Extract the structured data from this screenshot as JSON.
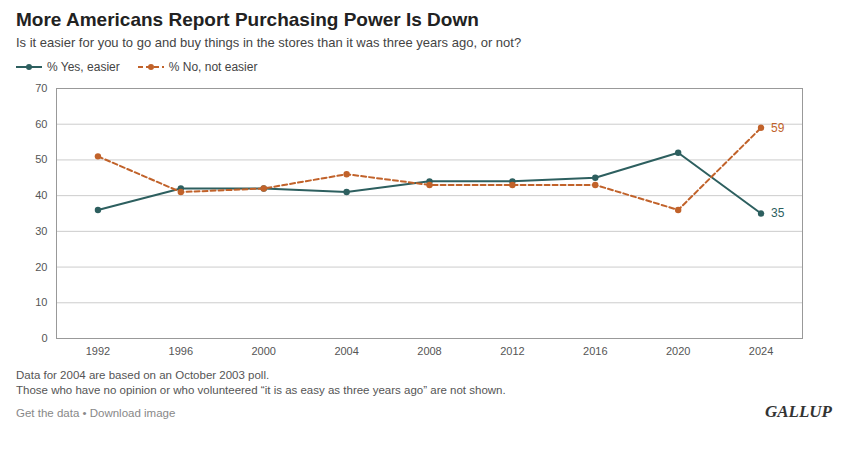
{
  "chart_data": {
    "type": "line",
    "title": "More Americans Report Purchasing Power Is Down",
    "subtitle": "Is it easier for you to go and buy things in the stores than it was three years ago, or not?",
    "x": [
      1992,
      1996,
      2000,
      2004,
      2008,
      2012,
      2016,
      2020,
      2024
    ],
    "series": [
      {
        "name": "% Yes, easier",
        "color": "#2d5f5f",
        "line_style": "solid",
        "marker": "circle",
        "values": [
          36,
          42,
          42,
          41,
          44,
          44,
          45,
          52,
          35
        ]
      },
      {
        "name": "% No, not easier",
        "color": "#c1622a",
        "line_style": "dashed",
        "marker": "circle",
        "values": [
          51,
          41,
          42,
          46,
          43,
          43,
          43,
          36,
          59
        ]
      }
    ],
    "annotations": [
      {
        "text": "59",
        "x": 2024,
        "y": 59,
        "color": "#c1622a"
      },
      {
        "text": "35",
        "x": 2024,
        "y": 35,
        "color": "#2d5f5f"
      }
    ],
    "xlim": [
      1990,
      2026
    ],
    "xticks": [
      1992,
      1996,
      2000,
      2004,
      2008,
      2012,
      2016,
      2020,
      2024
    ],
    "ylim": [
      0,
      70
    ],
    "yticks": [
      0,
      10,
      20,
      30,
      40,
      50,
      60,
      70
    ],
    "grid": "y",
    "legend": "upper left",
    "footnotes": [
      "Data for 2004 are based on an October 2003 poll.",
      "Those who have no opinion or who volunteered “it is as easy as three years ago” are not shown."
    ],
    "footer": [
      "Get the data • Download image",
      "GALLUP"
    ]
  }
}
